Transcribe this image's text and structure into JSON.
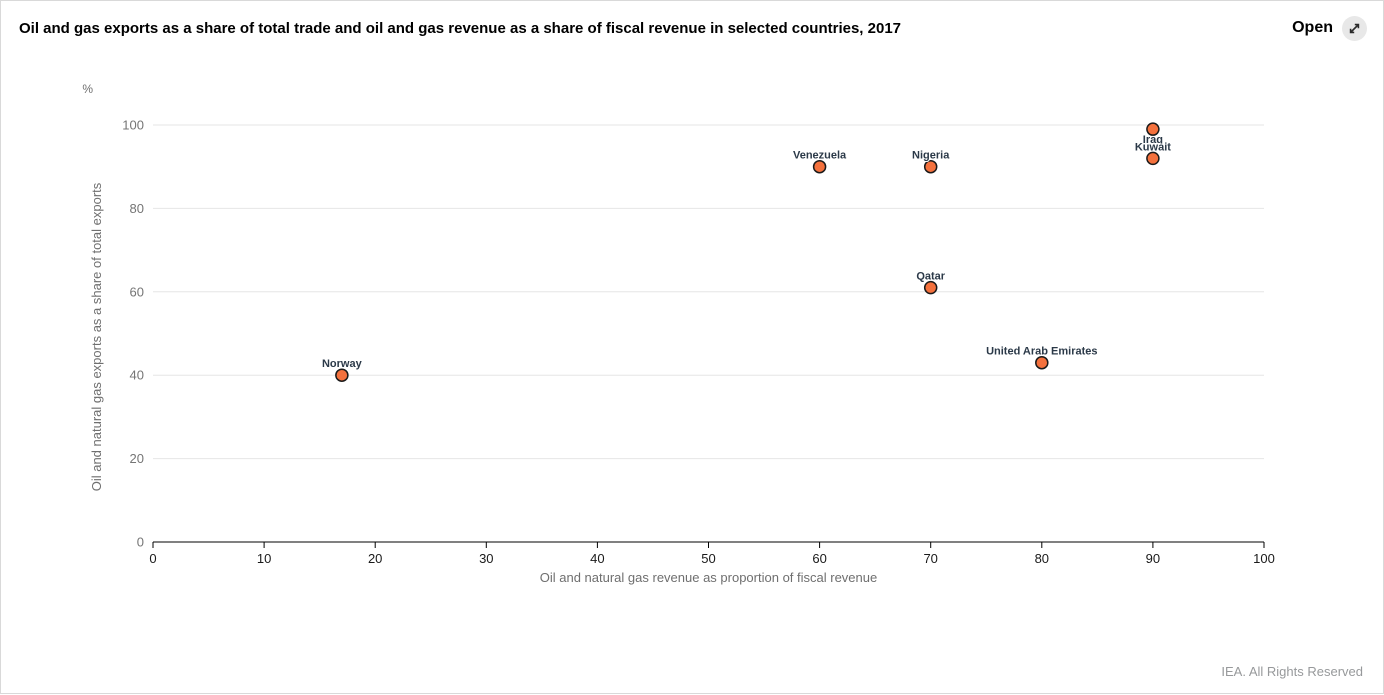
{
  "header": {
    "title": "Oil and gas exports as a share of total trade and oil and gas revenue as a share of fiscal revenue in selected countries, 2017",
    "open_button": {
      "label": "Open",
      "icon": "expand-diagonal-icon"
    }
  },
  "chart_data": {
    "type": "scatter",
    "title": "Oil and gas exports as a share of total trade and oil and gas revenue as a share of fiscal revenue in selected countries, 2017",
    "unit_label": "%",
    "xlabel": "Oil and natural gas revenue as proportion of fiscal revenue",
    "ylabel": "Oil and natural gas exports as a share of total exports",
    "xlim": [
      0,
      100
    ],
    "ylim": [
      0,
      100
    ],
    "x_ticks": [
      0,
      10,
      20,
      30,
      40,
      50,
      60,
      70,
      80,
      90,
      100
    ],
    "y_ticks": [
      0,
      20,
      40,
      60,
      80,
      100
    ],
    "grid": "horizontal",
    "legend": "none",
    "point_color": "#f4713d",
    "point_stroke": "#1a1a1a",
    "grid_color": "#e6e6e6",
    "axis_color": "#000000",
    "points": [
      {
        "name": "Norway",
        "x": 17,
        "y": 40,
        "label_position": "above"
      },
      {
        "name": "Venezuela",
        "x": 60,
        "y": 90,
        "label_position": "above"
      },
      {
        "name": "Nigeria",
        "x": 70,
        "y": 90,
        "label_position": "above"
      },
      {
        "name": "Qatar",
        "x": 70,
        "y": 61,
        "label_position": "above"
      },
      {
        "name": "United Arab Emirates",
        "x": 80,
        "y": 43,
        "label_position": "above"
      },
      {
        "name": "Iraq",
        "x": 90,
        "y": 99,
        "label_position": "below"
      },
      {
        "name": "Kuwait",
        "x": 90,
        "y": 92,
        "label_position": "above"
      }
    ]
  },
  "footer": {
    "copyright": "IEA. All Rights Reserved"
  }
}
